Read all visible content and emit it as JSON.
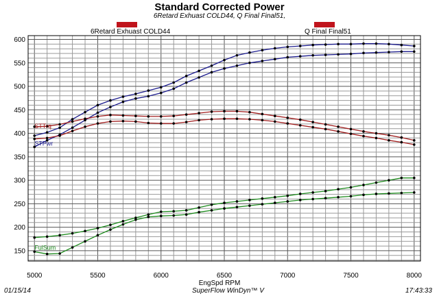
{
  "header": {
    "title": "Standard Corrected Power",
    "subtitle": "6Retard Exhuast COLD44, Q Final Final51,"
  },
  "legend": [
    {
      "label": "6Retard Exhuast COLD44",
      "color": "#c0141c"
    },
    {
      "label": "Q Final Final51",
      "color": "#c0141c"
    }
  ],
  "footer": {
    "date": "01/15/14",
    "software": "SuperFlow WinDyn™ V",
    "time": "17:43:33"
  },
  "chart_data": {
    "type": "line",
    "title": "Standard Corrected Power",
    "xlabel": "EngSpd RPM",
    "ylabel": "",
    "xlim": [
      4950,
      8050
    ],
    "ylim": [
      128,
      608
    ],
    "xticks": [
      5000,
      5500,
      6000,
      6500,
      7000,
      7500,
      8000
    ],
    "yticks": [
      150,
      200,
      250,
      300,
      350,
      400,
      450,
      500,
      550,
      600
    ],
    "grid": true,
    "x": [
      5000,
      5100,
      5200,
      5300,
      5400,
      5500,
      5600,
      5700,
      5800,
      5900,
      6000,
      6100,
      6200,
      6300,
      6400,
      6500,
      6600,
      6700,
      6800,
      6900,
      7000,
      7100,
      7200,
      7300,
      7400,
      7500,
      7600,
      7700,
      7800,
      7900,
      8000
    ],
    "series": [
      {
        "name": "STPwr",
        "group": "6Retard Exhuast COLD44",
        "color": "#1a1a8c",
        "values": [
          395,
          402,
          412,
          430,
          445,
          460,
          470,
          478,
          484,
          491,
          498,
          508,
          522,
          533,
          544,
          556,
          566,
          572,
          577,
          581,
          584,
          586,
          588,
          589,
          590,
          590,
          591,
          591,
          590,
          588,
          586
        ]
      },
      {
        "name": "STPwr",
        "group": "Q Final Final51",
        "color": "#1a1a8c",
        "values": [
          371,
          385,
          397,
          412,
          428,
          444,
          456,
          467,
          474,
          479,
          486,
          495,
          508,
          519,
          530,
          538,
          544,
          550,
          554,
          558,
          562,
          564,
          566,
          567,
          568,
          569,
          571,
          572,
          573,
          574,
          574
        ]
      },
      {
        "name": "STTrq",
        "group": "6Retard Exhuast COLD44",
        "color": "#a01c1c",
        "values": [
          414,
          415,
          419,
          425,
          431,
          436,
          439,
          438,
          437,
          436,
          436,
          437,
          440,
          443,
          446,
          447,
          447,
          445,
          441,
          437,
          433,
          429,
          424,
          419,
          414,
          409,
          404,
          400,
          396,
          391,
          385
        ]
      },
      {
        "name": "STTrq",
        "group": "Q Final Final51",
        "color": "#a01c1c",
        "values": [
          388,
          390,
          395,
          405,
          414,
          421,
          425,
          426,
          425,
          422,
          421,
          421,
          424,
          428,
          430,
          431,
          431,
          430,
          428,
          425,
          421,
          417,
          413,
          409,
          404,
          399,
          394,
          390,
          385,
          381,
          376
        ]
      },
      {
        "name": "FulSum",
        "group": "6Retard Exhuast COLD44",
        "color": "#1b8a1b",
        "values": [
          178,
          180,
          183,
          187,
          192,
          198,
          205,
          213,
          220,
          227,
          233,
          234,
          236,
          242,
          248,
          252,
          255,
          258,
          261,
          264,
          267,
          271,
          274,
          277,
          281,
          285,
          290,
          295,
          300,
          305,
          305
        ]
      },
      {
        "name": "FulSum",
        "group": "Q Final Final51",
        "color": "#1b8a1b",
        "values": [
          148,
          143,
          144,
          157,
          170,
          183,
          195,
          206,
          216,
          222,
          224,
          225,
          227,
          232,
          236,
          240,
          243,
          246,
          249,
          252,
          255,
          258,
          260,
          262,
          264,
          266,
          269,
          271,
          272,
          273,
          274
        ]
      }
    ],
    "series_labels": [
      {
        "text": "STPwr",
        "color": "#1a1a8c",
        "x": 5000,
        "y": 374
      },
      {
        "text": "STTrq",
        "color": "#a01c1c",
        "x": 5000,
        "y": 411
      },
      {
        "text": "FulSum",
        "color": "#1b8a1b",
        "x": 5000,
        "y": 152
      }
    ]
  }
}
